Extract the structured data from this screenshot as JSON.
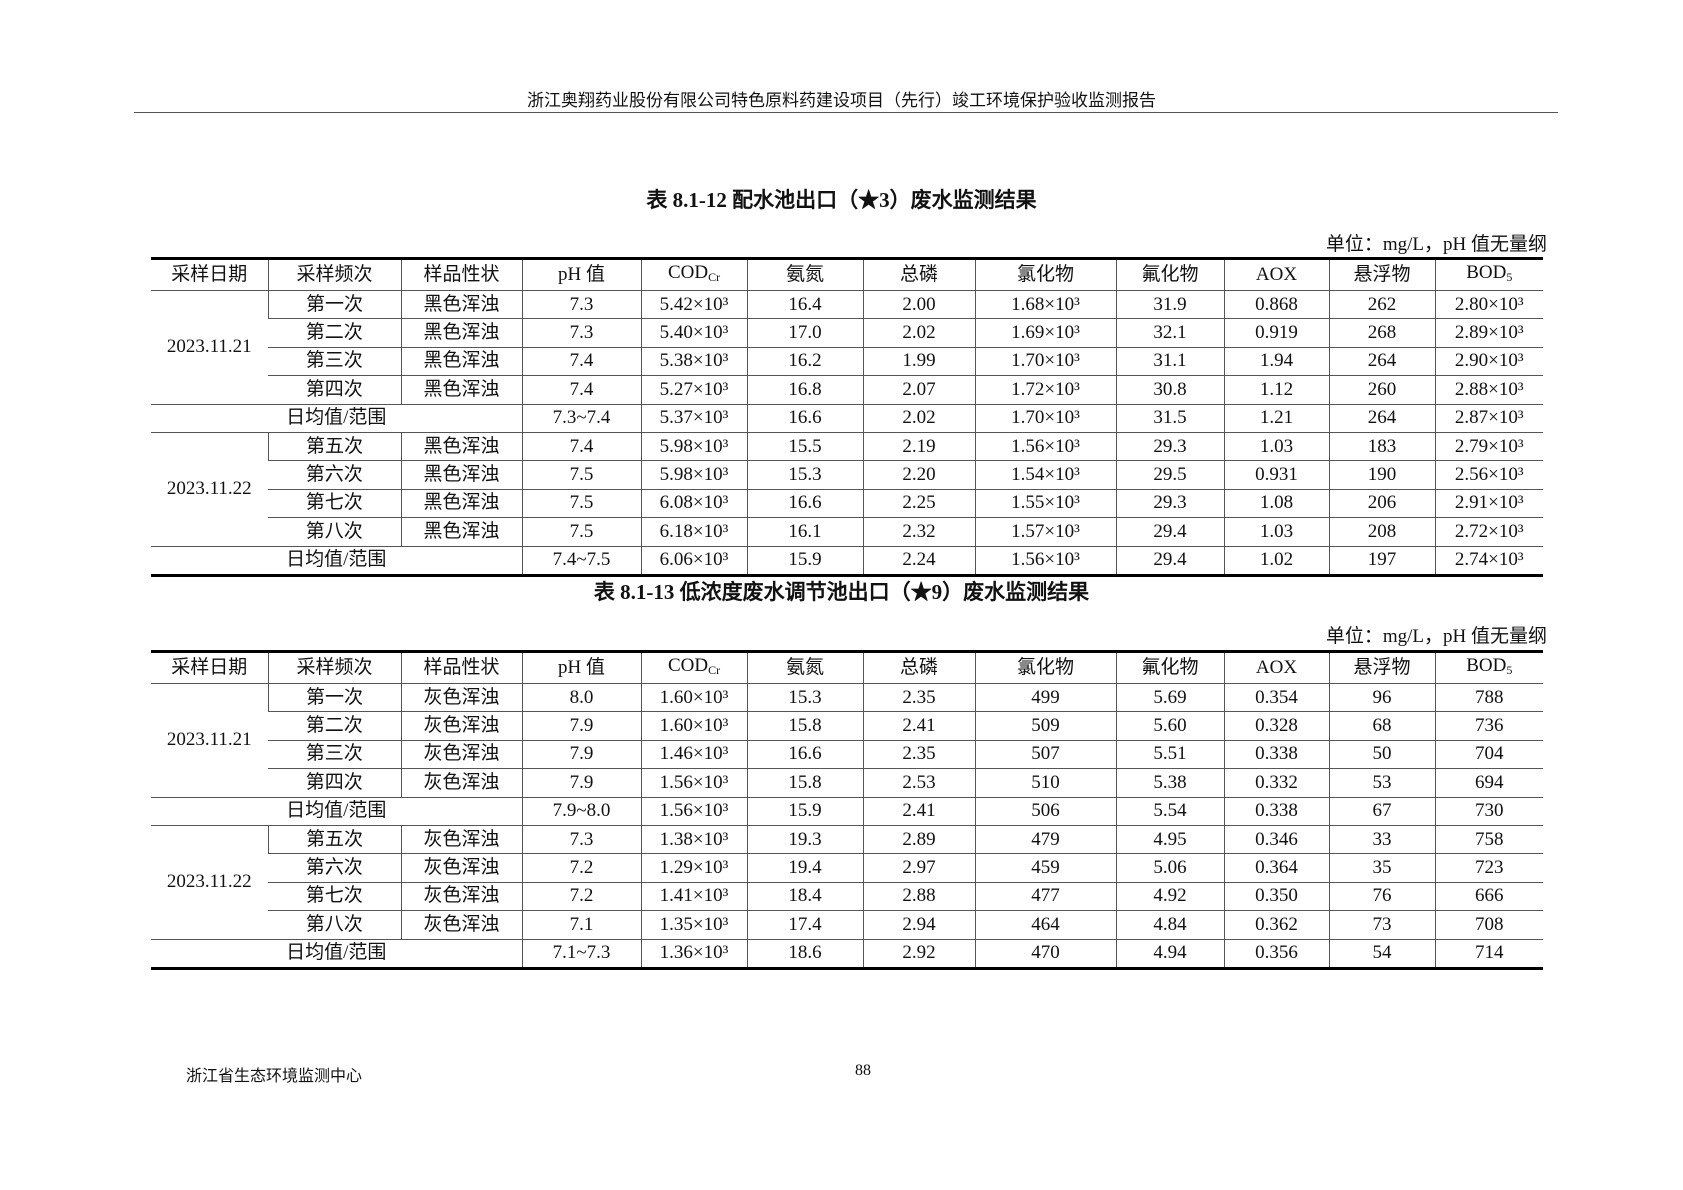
{
  "header": {
    "title": "浙江奥翔药业股份有限公司特色原料药建设项目（先行）竣工环境保护验收监测报告"
  },
  "columns": [
    {
      "main": "采样日期"
    },
    {
      "main": "采样频次"
    },
    {
      "main": "样品性状"
    },
    {
      "main": "pH 值"
    },
    {
      "main": "COD",
      "sub": "Cr"
    },
    {
      "main": "氨氮"
    },
    {
      "main": "总磷"
    },
    {
      "main": "氯化物"
    },
    {
      "main": "氟化物"
    },
    {
      "main": "AOX"
    },
    {
      "main": "悬浮物"
    },
    {
      "main": "BOD",
      "sub": "5"
    }
  ],
  "tables": [
    {
      "title": "表 8.1-12  配水池出口（★3）废水监测结果",
      "unit": "单位：mg/L，pH 值无量纲",
      "groups": [
        {
          "date": "2023.11.21",
          "rows": [
            {
              "freq": "第一次",
              "state": "黑色浑浊",
              "values": [
                "7.3",
                "5.42×10³",
                "16.4",
                "2.00",
                "1.68×10³",
                "31.9",
                "0.868",
                "262",
                "2.80×10³"
              ]
            },
            {
              "freq": "第二次",
              "state": "黑色浑浊",
              "values": [
                "7.3",
                "5.40×10³",
                "17.0",
                "2.02",
                "1.69×10³",
                "32.1",
                "0.919",
                "268",
                "2.89×10³"
              ]
            },
            {
              "freq": "第三次",
              "state": "黑色浑浊",
              "values": [
                "7.4",
                "5.38×10³",
                "16.2",
                "1.99",
                "1.70×10³",
                "31.1",
                "1.94",
                "264",
                "2.90×10³"
              ]
            },
            {
              "freq": "第四次",
              "state": "黑色浑浊",
              "values": [
                "7.4",
                "5.27×10³",
                "16.8",
                "2.07",
                "1.72×10³",
                "30.8",
                "1.12",
                "260",
                "2.88×10³"
              ]
            }
          ],
          "avg": {
            "label": "日均值/范围",
            "values": [
              "7.3~7.4",
              "5.37×10³",
              "16.6",
              "2.02",
              "1.70×10³",
              "31.5",
              "1.21",
              "264",
              "2.87×10³"
            ]
          }
        },
        {
          "date": "2023.11.22",
          "rows": [
            {
              "freq": "第五次",
              "state": "黑色浑浊",
              "values": [
                "7.4",
                "5.98×10³",
                "15.5",
                "2.19",
                "1.56×10³",
                "29.3",
                "1.03",
                "183",
                "2.79×10³"
              ]
            },
            {
              "freq": "第六次",
              "state": "黑色浑浊",
              "values": [
                "7.5",
                "5.98×10³",
                "15.3",
                "2.20",
                "1.54×10³",
                "29.5",
                "0.931",
                "190",
                "2.56×10³"
              ]
            },
            {
              "freq": "第七次",
              "state": "黑色浑浊",
              "values": [
                "7.5",
                "6.08×10³",
                "16.6",
                "2.25",
                "1.55×10³",
                "29.3",
                "1.08",
                "206",
                "2.91×10³"
              ]
            },
            {
              "freq": "第八次",
              "state": "黑色浑浊",
              "values": [
                "7.5",
                "6.18×10³",
                "16.1",
                "2.32",
                "1.57×10³",
                "29.4",
                "1.03",
                "208",
                "2.72×10³"
              ]
            }
          ],
          "avg": {
            "label": "日均值/范围",
            "values": [
              "7.4~7.5",
              "6.06×10³",
              "15.9",
              "2.24",
              "1.56×10³",
              "29.4",
              "1.02",
              "197",
              "2.74×10³"
            ]
          }
        }
      ]
    },
    {
      "title": "表 8.1-13  低浓度废水调节池出口（★9）废水监测结果",
      "unit": "单位：mg/L，pH 值无量纲",
      "groups": [
        {
          "date": "2023.11.21",
          "rows": [
            {
              "freq": "第一次",
              "state": "灰色浑浊",
              "values": [
                "8.0",
                "1.60×10³",
                "15.3",
                "2.35",
                "499",
                "5.69",
                "0.354",
                "96",
                "788"
              ]
            },
            {
              "freq": "第二次",
              "state": "灰色浑浊",
              "values": [
                "7.9",
                "1.60×10³",
                "15.8",
                "2.41",
                "509",
                "5.60",
                "0.328",
                "68",
                "736"
              ]
            },
            {
              "freq": "第三次",
              "state": "灰色浑浊",
              "values": [
                "7.9",
                "1.46×10³",
                "16.6",
                "2.35",
                "507",
                "5.51",
                "0.338",
                "50",
                "704"
              ]
            },
            {
              "freq": "第四次",
              "state": "灰色浑浊",
              "values": [
                "7.9",
                "1.56×10³",
                "15.8",
                "2.53",
                "510",
                "5.38",
                "0.332",
                "53",
                "694"
              ]
            }
          ],
          "avg": {
            "label": "日均值/范围",
            "values": [
              "7.9~8.0",
              "1.56×10³",
              "15.9",
              "2.41",
              "506",
              "5.54",
              "0.338",
              "67",
              "730"
            ]
          }
        },
        {
          "date": "2023.11.22",
          "rows": [
            {
              "freq": "第五次",
              "state": "灰色浑浊",
              "values": [
                "7.3",
                "1.38×10³",
                "19.3",
                "2.89",
                "479",
                "4.95",
                "0.346",
                "33",
                "758"
              ]
            },
            {
              "freq": "第六次",
              "state": "灰色浑浊",
              "values": [
                "7.2",
                "1.29×10³",
                "19.4",
                "2.97",
                "459",
                "5.06",
                "0.364",
                "35",
                "723"
              ]
            },
            {
              "freq": "第七次",
              "state": "灰色浑浊",
              "values": [
                "7.2",
                "1.41×10³",
                "18.4",
                "2.88",
                "477",
                "4.92",
                "0.350",
                "76",
                "666"
              ]
            },
            {
              "freq": "第八次",
              "state": "灰色浑浊",
              "values": [
                "7.1",
                "1.35×10³",
                "17.4",
                "2.94",
                "464",
                "4.84",
                "0.362",
                "73",
                "708"
              ]
            }
          ],
          "avg": {
            "label": "日均值/范围",
            "values": [
              "7.1~7.3",
              "1.36×10³",
              "18.6",
              "2.92",
              "470",
              "4.94",
              "0.356",
              "54",
              "714"
            ]
          }
        }
      ]
    }
  ],
  "footer": {
    "org": "浙江省生态环境监测中心",
    "page": "88"
  }
}
